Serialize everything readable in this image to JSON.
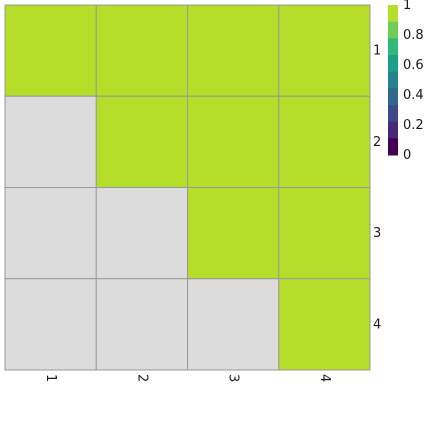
{
  "chart_data": {
    "type": "heatmap",
    "title": "",
    "xlabel": "",
    "ylabel": "",
    "x_tick_labels": [
      "1",
      "2",
      "3",
      "4"
    ],
    "y_tick_labels": [
      "1",
      "2",
      "3",
      "4"
    ],
    "matrix": [
      [
        1,
        1,
        1,
        1
      ],
      [
        null,
        1,
        1,
        1
      ],
      [
        null,
        null,
        1,
        1
      ],
      [
        null,
        null,
        null,
        1
      ]
    ],
    "missing_color": "#dcdcdc",
    "grid_color": "#999999",
    "colorbar": {
      "placement": "top-right",
      "range": [
        0,
        1
      ],
      "tick_labels": [
        "1",
        "0.8",
        "0.6",
        "0.4",
        "0.2",
        "0"
      ],
      "colors": [
        "#b5de2b",
        "#6ece58",
        "#35b779",
        "#1f9e89",
        "#26828e",
        "#31688e",
        "#3e4a89",
        "#482878",
        "#440154"
      ]
    }
  }
}
